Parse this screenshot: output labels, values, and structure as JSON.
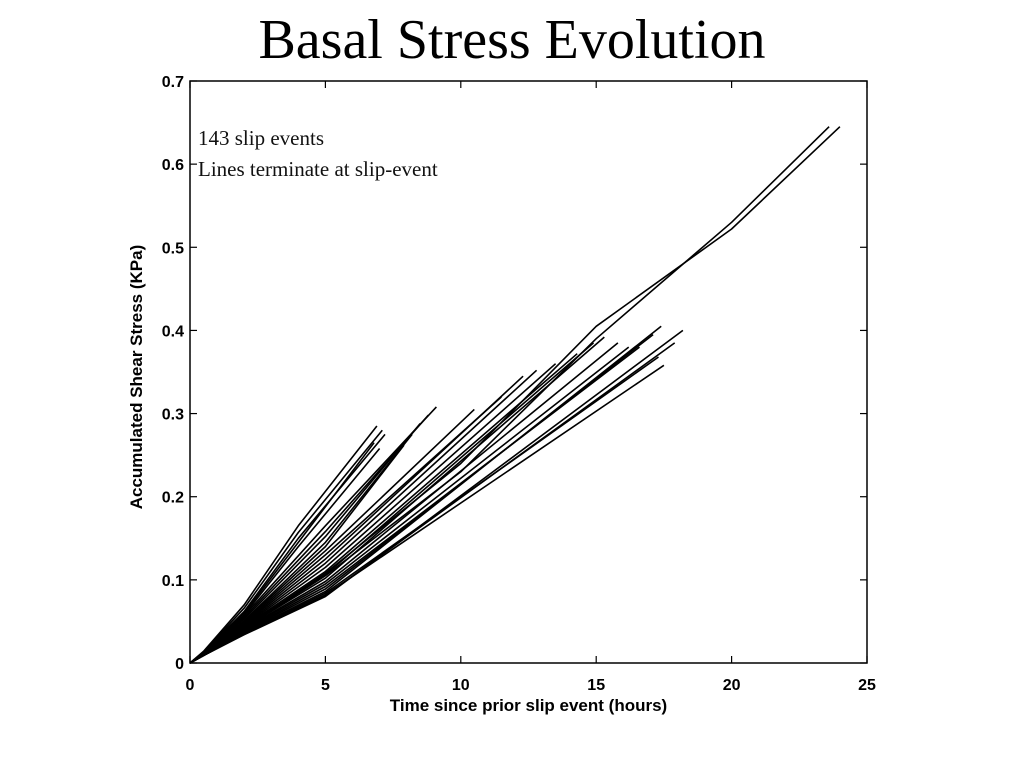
{
  "slide": {
    "title": "Basal Stress Evolution"
  },
  "chart_data": {
    "type": "line",
    "title": "Basal Stress Evolution",
    "xlabel": "Time since prior slip event (hours)",
    "ylabel": "Accumulated Shear Stress (KPa)",
    "xlim": [
      0,
      25
    ],
    "ylim": [
      0,
      0.7
    ],
    "xticks": [
      0,
      5,
      10,
      15,
      20,
      25
    ],
    "yticks": [
      0,
      0.1,
      0.2,
      0.3,
      0.4,
      0.5,
      0.6,
      0.7
    ],
    "grid": false,
    "annotations": [
      "143 slip events",
      "Lines terminate at slip-event"
    ],
    "series": [
      {
        "x": [
          0,
          0.5,
          2,
          4,
          6.9
        ],
        "y": [
          0,
          0.014,
          0.07,
          0.165,
          0.285
        ]
      },
      {
        "x": [
          0,
          0.5,
          2,
          4,
          7.1
        ],
        "y": [
          0,
          0.013,
          0.066,
          0.157,
          0.28
        ]
      },
      {
        "x": [
          0,
          0.5,
          2,
          4,
          7.2
        ],
        "y": [
          0,
          0.013,
          0.062,
          0.15,
          0.275
        ]
      },
      {
        "x": [
          0,
          0.5,
          2,
          4,
          6.8
        ],
        "y": [
          0,
          0.013,
          0.06,
          0.145,
          0.265
        ]
      },
      {
        "x": [
          0,
          0.5,
          2,
          4,
          7.0
        ],
        "y": [
          0,
          0.012,
          0.058,
          0.14,
          0.258
        ]
      },
      {
        "x": [
          0,
          0.5,
          2,
          5,
          9.1
        ],
        "y": [
          0,
          0.012,
          0.057,
          0.165,
          0.308
        ]
      },
      {
        "x": [
          0,
          0.5,
          2,
          5,
          8.8
        ],
        "y": [
          0,
          0.012,
          0.055,
          0.158,
          0.298
        ]
      },
      {
        "x": [
          0,
          0.5,
          2,
          5,
          8.5
        ],
        "y": [
          0,
          0.012,
          0.053,
          0.152,
          0.288
        ]
      },
      {
        "x": [
          0,
          0.5,
          2,
          5,
          8.2
        ],
        "y": [
          0,
          0.011,
          0.051,
          0.145,
          0.275
        ]
      },
      {
        "x": [
          0,
          0.5,
          2,
          5,
          7.9
        ],
        "y": [
          0,
          0.011,
          0.05,
          0.14,
          0.262
        ]
      },
      {
        "x": [
          0,
          0.5,
          2,
          5,
          10.5
        ],
        "y": [
          0,
          0.011,
          0.049,
          0.135,
          0.305
        ]
      },
      {
        "x": [
          0,
          0.5,
          2,
          5,
          11.5
        ],
        "y": [
          0,
          0.011,
          0.048,
          0.13,
          0.32
        ]
      },
      {
        "x": [
          0,
          0.5,
          2,
          5,
          12.3
        ],
        "y": [
          0,
          0.011,
          0.047,
          0.125,
          0.345
        ]
      },
      {
        "x": [
          0,
          0.5,
          2,
          5,
          12.8
        ],
        "y": [
          0,
          0.01,
          0.046,
          0.12,
          0.352
        ]
      },
      {
        "x": [
          0,
          0.5,
          2,
          5,
          13.5
        ],
        "y": [
          0,
          0.01,
          0.045,
          0.115,
          0.36
        ]
      },
      {
        "x": [
          0,
          0.5,
          2,
          5,
          14.3
        ],
        "y": [
          0,
          0.01,
          0.044,
          0.11,
          0.372
        ]
      },
      {
        "x": [
          0,
          0.5,
          2,
          5,
          14.9
        ],
        "y": [
          0,
          0.01,
          0.043,
          0.106,
          0.385
        ]
      },
      {
        "x": [
          0,
          0.5,
          2,
          5,
          15.3
        ],
        "y": [
          0,
          0.01,
          0.042,
          0.102,
          0.392
        ]
      },
      {
        "x": [
          0,
          0.5,
          2,
          5,
          15.8
        ],
        "y": [
          0,
          0.01,
          0.041,
          0.098,
          0.385
        ]
      },
      {
        "x": [
          0,
          0.5,
          2,
          5,
          16.2
        ],
        "y": [
          0,
          0.01,
          0.04,
          0.095,
          0.38
        ]
      },
      {
        "x": [
          0,
          0.5,
          2,
          5,
          16.6
        ],
        "y": [
          0,
          0.009,
          0.039,
          0.092,
          0.38
        ]
      },
      {
        "x": [
          0,
          0.5,
          2,
          5,
          17.1
        ],
        "y": [
          0,
          0.009,
          0.038,
          0.089,
          0.395
        ]
      },
      {
        "x": [
          0,
          0.5,
          2,
          5,
          17.4
        ],
        "y": [
          0,
          0.009,
          0.037,
          0.086,
          0.405
        ]
      },
      {
        "x": [
          0,
          0.5,
          2,
          5,
          17.3
        ],
        "y": [
          0,
          0.009,
          0.036,
          0.084,
          0.368
        ]
      },
      {
        "x": [
          0,
          0.5,
          2,
          5,
          17.5
        ],
        "y": [
          0,
          0.009,
          0.035,
          0.082,
          0.358
        ]
      },
      {
        "x": [
          0,
          0.5,
          2,
          5,
          17.9
        ],
        "y": [
          0,
          0.009,
          0.035,
          0.081,
          0.385
        ]
      },
      {
        "x": [
          0,
          0.5,
          2,
          5,
          18.2
        ],
        "y": [
          0,
          0.009,
          0.034,
          0.08,
          0.4
        ]
      },
      {
        "x": [
          0,
          0.5,
          2,
          5,
          10,
          15,
          20,
          23.6
        ],
        "y": [
          0,
          0.01,
          0.042,
          0.105,
          0.23,
          0.39,
          0.53,
          0.645
        ]
      },
      {
        "x": [
          0,
          0.5,
          2,
          5,
          10,
          15,
          20,
          24.0
        ],
        "y": [
          0,
          0.01,
          0.042,
          0.108,
          0.24,
          0.405,
          0.522,
          0.645
        ]
      }
    ]
  }
}
